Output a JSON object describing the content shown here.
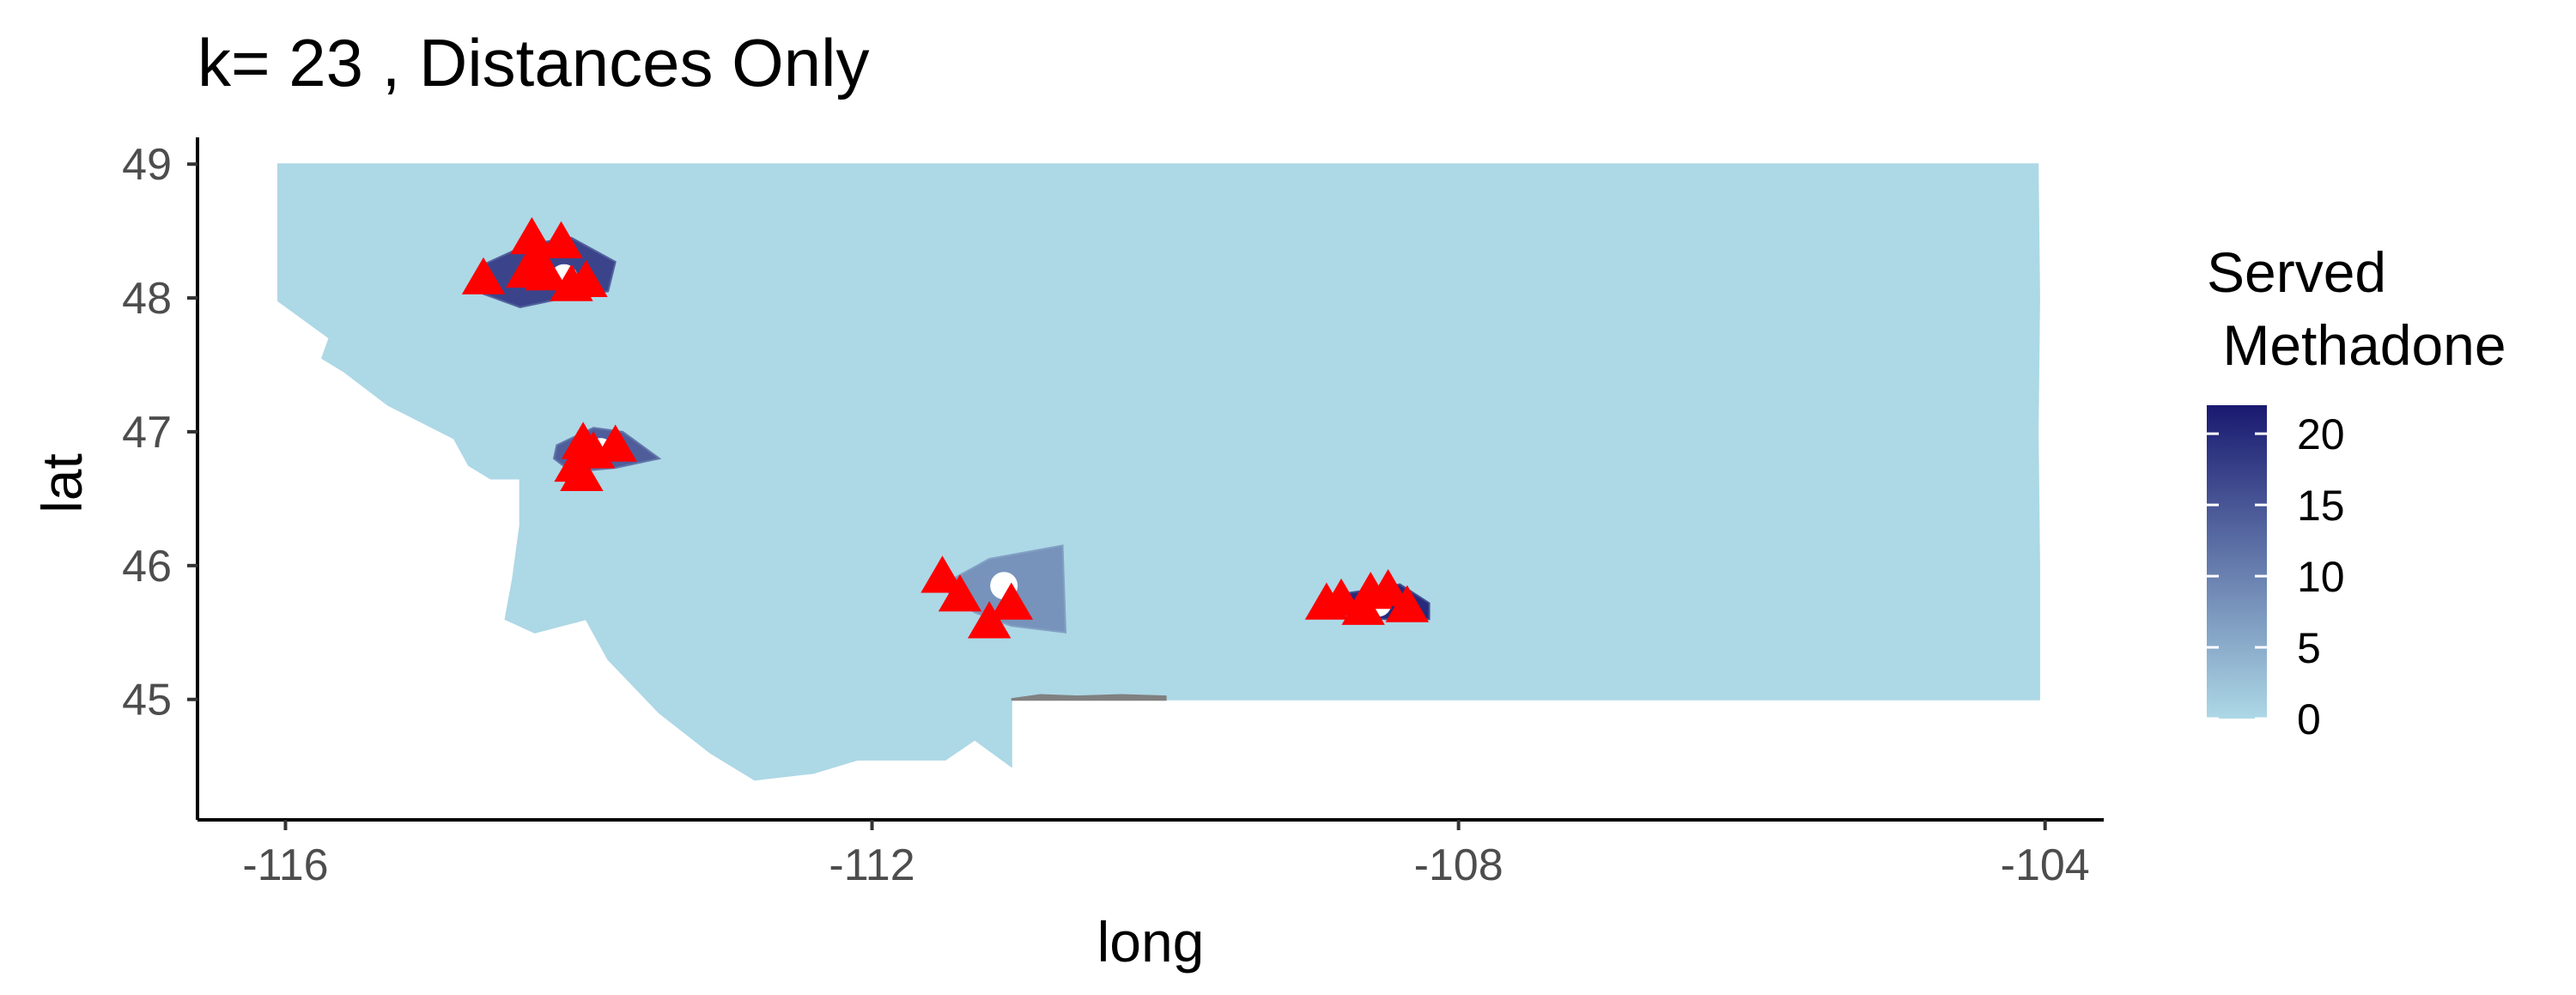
{
  "chart_data": {
    "type": "choropleth",
    "title": "k= 23 , Distances Only",
    "xlabel": "long",
    "ylabel": "lat",
    "xlim": [
      -116.6,
      -103.6
    ],
    "ylim": [
      44.1,
      49.2
    ],
    "x_ticks": [
      -116,
      -112,
      -108,
      -104
    ],
    "x_tick_labels": [
      "-116",
      "-112",
      "-108",
      "-104"
    ],
    "y_ticks": [
      45,
      46,
      47,
      48,
      49
    ],
    "y_tick_labels": [
      "45",
      "46",
      "47",
      "48",
      "49"
    ],
    "grid": false,
    "legend": {
      "title_line1": "Served",
      "title_line2": " Methadone",
      "position": "right",
      "range": [
        0,
        22
      ],
      "breaks": [
        0,
        5,
        10,
        15,
        20
      ],
      "break_labels": [
        "0",
        "5",
        "10",
        "15",
        "20"
      ],
      "low_color": "#add8e6",
      "high_color": "#191970"
    },
    "base_fill_color": "#add8e6",
    "marker_color": "#ff0000",
    "marker_shape": "triangle",
    "clusters": [
      {
        "center": [
          -114.1,
          48.15
        ],
        "served": 17
      },
      {
        "center": [
          -113.85,
          46.85
        ],
        "served": 14
      },
      {
        "center": [
          -111.1,
          45.85
        ],
        "served": 8
      },
      {
        "center": [
          -108.55,
          45.72
        ],
        "served": 20
      }
    ],
    "facilities": [
      [
        -114.32,
        48.45
      ],
      [
        -114.12,
        48.42
      ],
      [
        -114.35,
        48.2
      ],
      [
        -114.22,
        48.18
      ],
      [
        -114.05,
        48.1
      ],
      [
        -113.95,
        48.13
      ],
      [
        -114.65,
        48.15
      ],
      [
        -114.28,
        48.28
      ],
      [
        -113.97,
        46.92
      ],
      [
        -113.75,
        46.9
      ],
      [
        -113.9,
        46.85
      ],
      [
        -114.02,
        46.75
      ],
      [
        -113.98,
        46.68
      ],
      [
        -111.52,
        45.92
      ],
      [
        -111.4,
        45.78
      ],
      [
        -111.05,
        45.72
      ],
      [
        -111.2,
        45.58
      ],
      [
        -108.8,
        45.75
      ],
      [
        -108.6,
        45.8
      ],
      [
        -108.48,
        45.82
      ],
      [
        -108.35,
        45.7
      ],
      [
        -108.9,
        45.72
      ],
      [
        -108.65,
        45.68
      ]
    ]
  }
}
